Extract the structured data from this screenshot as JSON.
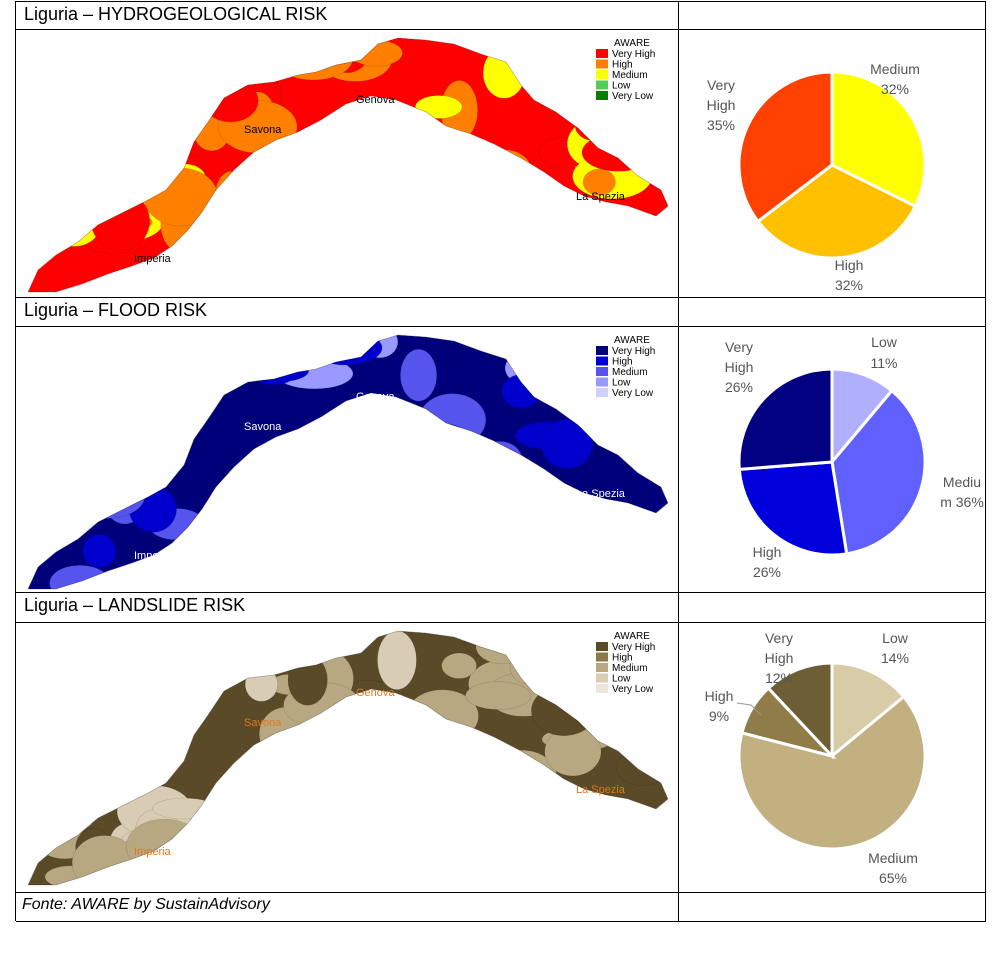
{
  "source": "Fonte: AWARE by SustainAdvisory",
  "panels": [
    {
      "title": "Liguria – HYDROGEOLOGICAL RISK",
      "map": {
        "legend_title": "AWARE",
        "legend": [
          {
            "label": "Very High",
            "color": "#ff0000"
          },
          {
            "label": "High",
            "color": "#ff8000"
          },
          {
            "label": "Medium",
            "color": "#ffff00"
          },
          {
            "label": "Low",
            "color": "#55cc55"
          },
          {
            "label": "Very Low",
            "color": "#008000"
          }
        ],
        "cities": [
          "Savona",
          "Genova",
          "La Spezia",
          "Imperia"
        ],
        "city_color": "#000000",
        "palette": [
          "#ff0000",
          "#ff8000",
          "#ffff00"
        ]
      }
    },
    {
      "title": "Liguria – FLOOD RISK",
      "map": {
        "legend_title": "AWARE",
        "legend": [
          {
            "label": "Very High",
            "color": "#00007a"
          },
          {
            "label": "High",
            "color": "#0000cc"
          },
          {
            "label": "Medium",
            "color": "#5555ee"
          },
          {
            "label": "Low",
            "color": "#9999ff"
          },
          {
            "label": "Very Low",
            "color": "#d0d0ff"
          }
        ],
        "cities": [
          "Savona",
          "Genova",
          "La Spezia",
          "Imperia"
        ],
        "city_color": "#ffffff",
        "palette": [
          "#00007a",
          "#0000cc",
          "#5555ee",
          "#9999ff"
        ]
      }
    },
    {
      "title": "Liguria – LANDSLIDE RISK",
      "map": {
        "legend_title": "AWARE",
        "legend": [
          {
            "label": "Very High",
            "color": "#5a4a28"
          },
          {
            "label": "High",
            "color": "#8a7a4a"
          },
          {
            "label": "Medium",
            "color": "#b8a882"
          },
          {
            "label": "Low",
            "color": "#d8cdb4"
          },
          {
            "label": "Very Low",
            "color": "#ece6da"
          }
        ],
        "cities": [
          "Savona",
          "Genova",
          "La Spezia",
          "Imperia"
        ],
        "city_color": "#e07820",
        "palette": [
          "#5a4a28",
          "#b8a882",
          "#b8a882",
          "#d8cdb4"
        ]
      }
    }
  ],
  "chart_data": [
    {
      "type": "pie",
      "slices": [
        {
          "label": "Medium",
          "value": 32,
          "color": "#ffff00",
          "text": "32%"
        },
        {
          "label": "High",
          "value": 32,
          "color": "#ffc000",
          "text": "32%"
        },
        {
          "label": "Very High",
          "value": 35,
          "color": "#ff4000",
          "text": "35%"
        }
      ]
    },
    {
      "type": "pie",
      "slices": [
        {
          "label": "Low",
          "value": 11,
          "color": "#b0b0ff",
          "text": "11%"
        },
        {
          "label": "Medium",
          "value": 36,
          "color": "#6060ff",
          "text": "m 36%"
        },
        {
          "label": "High",
          "value": 26,
          "color": "#0000dd",
          "text": "26%"
        },
        {
          "label": "Very High",
          "value": 26,
          "color": "#000080",
          "text": "26%"
        }
      ],
      "label_lines": {
        "Medium": "Mediu"
      }
    },
    {
      "type": "pie",
      "slices": [
        {
          "label": "Low",
          "value": 14,
          "color": "#d8cca8",
          "text": "14%"
        },
        {
          "label": "Medium",
          "value": 65,
          "color": "#c2b080",
          "text": "65%"
        },
        {
          "label": "High",
          "value": 9,
          "color": "#8f7c48",
          "text": "9%"
        },
        {
          "label": "Very High",
          "value": 12,
          "color": "#6e5e35",
          "text": "12%"
        }
      ]
    }
  ]
}
